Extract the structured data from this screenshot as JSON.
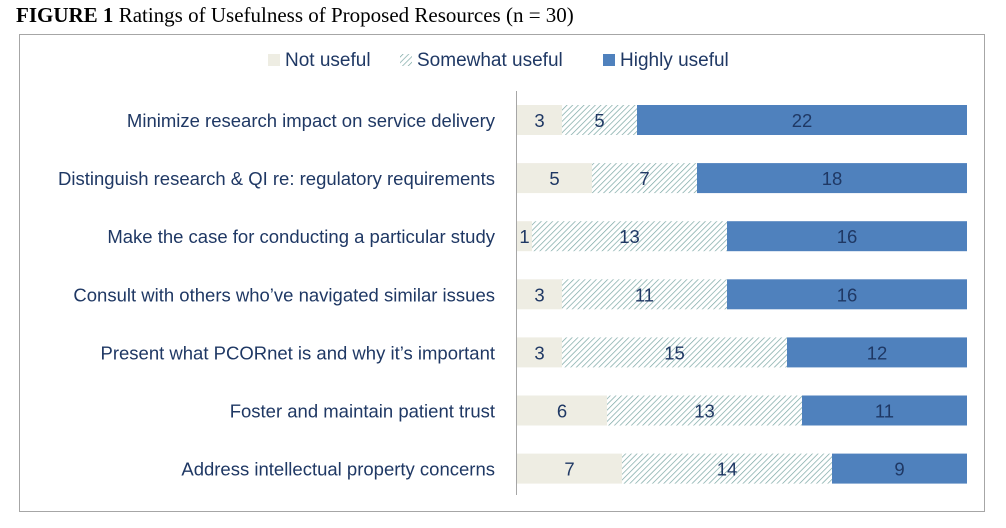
{
  "caption": {
    "figure_number": "FIGURE 1",
    "title": "Ratings of Usefulness of Proposed Resources (n = 30)"
  },
  "colors": {
    "not_useful": "#eeede3",
    "somewhat_useful_hatch": "#7aa7a4",
    "highly_useful": "#4f81bd",
    "label_text": "#1f3864",
    "axis_line": "#a6a6a6",
    "frame": "#a6a6a6"
  },
  "chart_data": {
    "type": "bar",
    "orientation": "horizontal",
    "stacked": true,
    "title": "Ratings of Usefulness of Proposed Resources (n = 30)",
    "categories": [
      "Minimize research impact on service delivery",
      "Distinguish research & QI re: regulatory requirements",
      "Make the case for conducting a particular study",
      "Consult with others who’ve navigated similar issues",
      "Present what PCORnet is and why it’s important",
      "Foster and maintain patient trust",
      "Address intellectual property concerns"
    ],
    "series": [
      {
        "name": "Not useful",
        "values": [
          3,
          5,
          1,
          3,
          3,
          6,
          7
        ]
      },
      {
        "name": "Somewhat useful",
        "values": [
          5,
          7,
          13,
          11,
          15,
          13,
          14
        ]
      },
      {
        "name": "Highly useful",
        "values": [
          22,
          18,
          16,
          16,
          12,
          11,
          9
        ]
      }
    ],
    "xlim": [
      0,
      30
    ],
    "legend_position": "top",
    "data_labels": true,
    "grid": false
  }
}
